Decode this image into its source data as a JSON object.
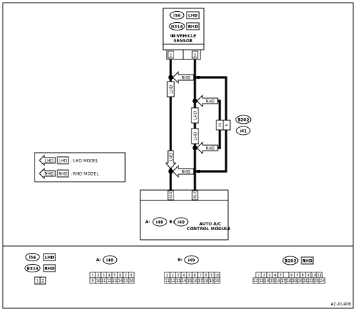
{
  "sensor": {
    "conn1": "i56",
    "tag1": "LHD",
    "conn2": "B314",
    "tag2": "RHD",
    "name_line1": "IN-VEHICLE",
    "name_line2": "SENSOR",
    "pin1": "1",
    "pin2": "2"
  },
  "wire_tags": {
    "rhd": "RHD",
    "lhd": "LHD"
  },
  "junction": {
    "conn1": "B202",
    "conn2": "i41",
    "pin_a": "24",
    "pin_b": "5"
  },
  "legend": {
    "lhd_arrow": "LHD",
    "lhd_box": "LHD",
    "lhd_text": ": LHD MODEL",
    "rhd_arrow": "RHD",
    "rhd_box": "RHD",
    "rhd_text": ": RHD MODEL"
  },
  "module": {
    "pin_a": "A16",
    "pin_b": "B12",
    "label_a": "A:",
    "conn_a": "i48",
    "label_b": "B:",
    "conn_b": "i49",
    "name_line1": "AUTO A/C",
    "name_line2": "CONTROL MODULE"
  },
  "bottom": {
    "c1_conn": "i56",
    "c1_tag": "LHD",
    "c2_conn": "B314",
    "c2_tag": "RHD",
    "small_pins": [
      "1",
      "2"
    ],
    "a_label": "A:",
    "a_conn": "i48",
    "a_row1": [
      "1",
      "2",
      "3",
      "4",
      "5",
      "6",
      "7",
      "8"
    ],
    "a_row2": [
      "9",
      "10",
      "11",
      "12",
      "13",
      "14",
      "15",
      "16"
    ],
    "b_label": "B:",
    "b_conn": "i49",
    "b_row1": [
      "1",
      "2",
      "3",
      "4",
      "5",
      "6",
      "7",
      "8",
      "9",
      "10"
    ],
    "b_row2": [
      "11",
      "12",
      "13",
      "14",
      "15",
      "16",
      "17",
      "18",
      "19",
      "20"
    ],
    "c_conn": "B202",
    "c_tag": "RHD",
    "c_row1": [
      "1",
      "2",
      "3",
      "4",
      "5",
      "",
      "6",
      "7",
      "8",
      "9",
      "10",
      "11"
    ],
    "c_row2": [
      "12",
      "13",
      "14",
      "15",
      "16",
      "17",
      "18",
      "19",
      "20",
      "21",
      "22",
      "23",
      "24"
    ]
  },
  "code": "AC-01406"
}
